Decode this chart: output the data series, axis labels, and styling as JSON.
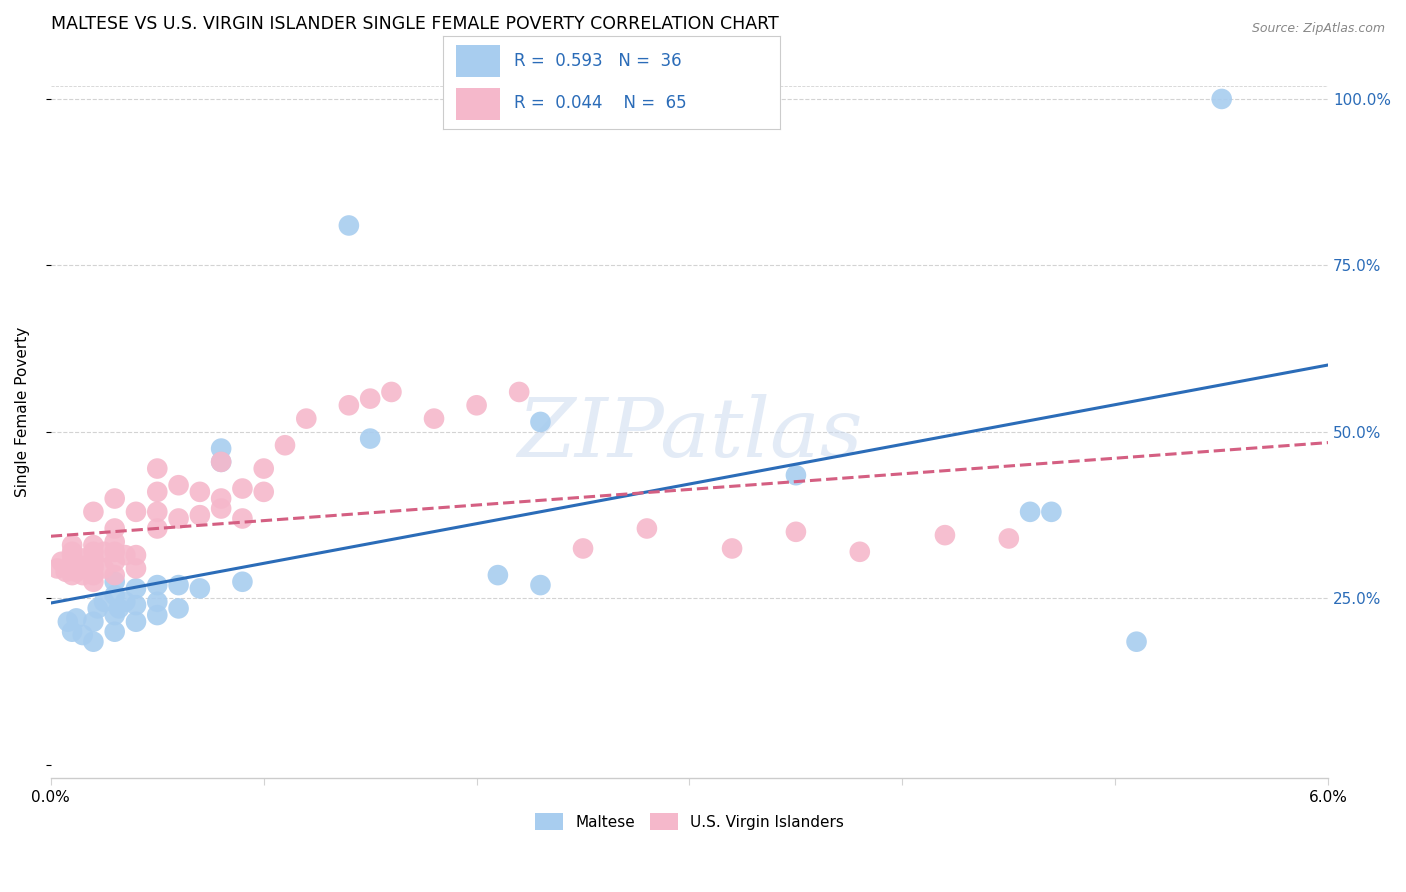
{
  "title": "MALTESE VS U.S. VIRGIN ISLANDER SINGLE FEMALE POVERTY CORRELATION CHART",
  "source": "Source: ZipAtlas.com",
  "ylabel": "Single Female Poverty",
  "xlim": [
    0.0,
    0.06
  ],
  "ylim": [
    -0.02,
    1.08
  ],
  "yticks": [
    0.0,
    0.25,
    0.5,
    0.75,
    1.0
  ],
  "ytick_labels": [
    "",
    "25.0%",
    "50.0%",
    "75.0%",
    "100.0%"
  ],
  "legend_maltese_R": "0.593",
  "legend_maltese_N": "36",
  "legend_vi_R": "0.044",
  "legend_vi_N": "65",
  "maltese_color": "#A8CDEF",
  "vi_color": "#F5B8CB",
  "maltese_line_color": "#2B6CB8",
  "vi_line_color": "#D45F82",
  "background_color": "#FFFFFF",
  "watermark_text": "ZIPatlas",
  "maltese_x": [
    0.0008,
    0.001,
    0.0012,
    0.0015,
    0.002,
    0.002,
    0.0022,
    0.0025,
    0.003,
    0.003,
    0.003,
    0.003,
    0.0032,
    0.0035,
    0.004,
    0.004,
    0.004,
    0.005,
    0.005,
    0.005,
    0.006,
    0.006,
    0.007,
    0.008,
    0.008,
    0.009,
    0.014,
    0.015,
    0.021,
    0.023,
    0.023,
    0.035,
    0.046,
    0.047,
    0.051,
    0.055
  ],
  "maltese_y": [
    0.215,
    0.2,
    0.22,
    0.195,
    0.185,
    0.215,
    0.235,
    0.245,
    0.2,
    0.225,
    0.255,
    0.275,
    0.235,
    0.245,
    0.215,
    0.24,
    0.265,
    0.225,
    0.245,
    0.27,
    0.235,
    0.27,
    0.265,
    0.455,
    0.475,
    0.275,
    0.81,
    0.49,
    0.285,
    0.27,
    0.515,
    0.435,
    0.38,
    0.38,
    0.185,
    1.0
  ],
  "vi_x": [
    0.0003,
    0.0005,
    0.0007,
    0.001,
    0.001,
    0.001,
    0.001,
    0.001,
    0.001,
    0.001,
    0.0012,
    0.0013,
    0.0015,
    0.0015,
    0.0015,
    0.002,
    0.002,
    0.002,
    0.002,
    0.002,
    0.002,
    0.002,
    0.002,
    0.0025,
    0.0025,
    0.003,
    0.003,
    0.003,
    0.003,
    0.003,
    0.003,
    0.0035,
    0.004,
    0.004,
    0.004,
    0.005,
    0.005,
    0.005,
    0.005,
    0.006,
    0.006,
    0.007,
    0.007,
    0.008,
    0.008,
    0.008,
    0.009,
    0.009,
    0.01,
    0.01,
    0.011,
    0.012,
    0.014,
    0.015,
    0.016,
    0.018,
    0.02,
    0.022,
    0.025,
    0.028,
    0.032,
    0.035,
    0.038,
    0.042,
    0.045
  ],
  "vi_y": [
    0.295,
    0.305,
    0.29,
    0.285,
    0.295,
    0.3,
    0.305,
    0.315,
    0.32,
    0.33,
    0.29,
    0.3,
    0.285,
    0.295,
    0.31,
    0.275,
    0.285,
    0.295,
    0.3,
    0.31,
    0.32,
    0.33,
    0.38,
    0.295,
    0.32,
    0.285,
    0.305,
    0.32,
    0.335,
    0.355,
    0.4,
    0.315,
    0.295,
    0.315,
    0.38,
    0.355,
    0.38,
    0.41,
    0.445,
    0.37,
    0.42,
    0.375,
    0.41,
    0.385,
    0.4,
    0.455,
    0.37,
    0.415,
    0.41,
    0.445,
    0.48,
    0.52,
    0.54,
    0.55,
    0.56,
    0.52,
    0.54,
    0.56,
    0.325,
    0.355,
    0.325,
    0.35,
    0.32,
    0.345,
    0.34
  ]
}
